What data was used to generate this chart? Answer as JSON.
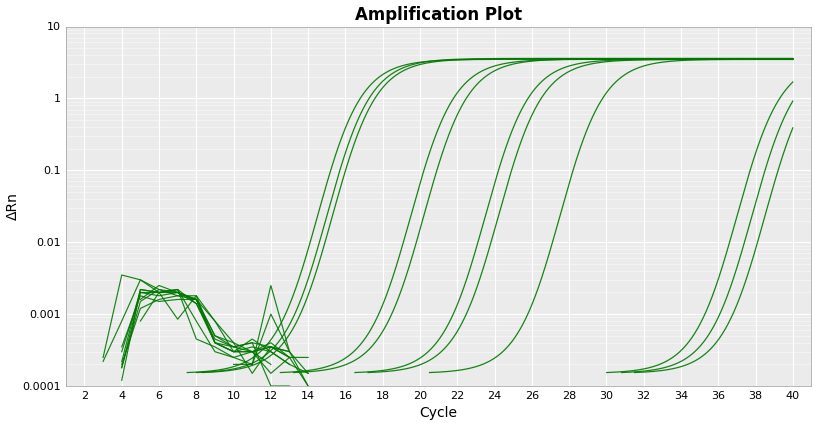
{
  "title": "Amplification Plot",
  "xlabel": "Cycle",
  "ylabel": "ΔRn",
  "xlim": [
    1,
    41
  ],
  "ylim_log": [
    0.0001,
    10
  ],
  "xticks": [
    2,
    4,
    6,
    8,
    10,
    12,
    14,
    16,
    18,
    20,
    22,
    24,
    26,
    28,
    30,
    32,
    34,
    36,
    38,
    40
  ],
  "yticks": [
    0.0001,
    0.001,
    0.01,
    0.1,
    1,
    10
  ],
  "line_color": "#007700",
  "background_color": "#ebebeb",
  "figsize": [
    8.17,
    4.26
  ],
  "dpi": 100,
  "sigmoid_curves": [
    {
      "Ct": 14.5,
      "plateau": 3.5,
      "slope": 0.85
    },
    {
      "Ct": 15.0,
      "plateau": 3.6,
      "slope": 0.85
    },
    {
      "Ct": 15.3,
      "plateau": 3.55,
      "slope": 0.85
    },
    {
      "Ct": 19.5,
      "plateau": 3.5,
      "slope": 0.85
    },
    {
      "Ct": 20.2,
      "plateau": 3.55,
      "slope": 0.85
    },
    {
      "Ct": 23.5,
      "plateau": 3.5,
      "slope": 0.85
    },
    {
      "Ct": 24.2,
      "plateau": 3.48,
      "slope": 0.85
    },
    {
      "Ct": 27.5,
      "plateau": 3.5,
      "slope": 0.85
    },
    {
      "Ct": 37.0,
      "plateau": 3.5,
      "slope": 0.85
    },
    {
      "Ct": 37.8,
      "plateau": 3.52,
      "slope": 0.85
    },
    {
      "Ct": 38.5,
      "plateau": 3.5,
      "slope": 0.85
    }
  ],
  "noise_traces": [
    [
      3,
      0.00025,
      4,
      0.0035,
      5,
      0.003,
      6,
      0.0022,
      7,
      0.0018,
      8,
      0.0016,
      9,
      0.0004,
      10,
      0.0003,
      11,
      0.0003,
      12,
      0.00015,
      13,
      0.00025,
      14,
      0.0001
    ],
    [
      3,
      0.00022,
      4,
      0.0008,
      5,
      0.003,
      6,
      0.002,
      7,
      0.00085,
      8,
      0.0018,
      9,
      0.0008,
      10,
      0.0003,
      11,
      0.00045,
      12,
      0.0003,
      13,
      0.0002,
      14,
      0.00015
    ],
    [
      4,
      0.00018,
      5,
      0.002,
      6,
      0.0018,
      7,
      0.002,
      8,
      0.0016,
      9,
      0.0005,
      10,
      0.00035,
      11,
      0.0004,
      12,
      0.0001,
      13,
      0.0001
    ],
    [
      4,
      0.0003,
      5,
      0.002,
      6,
      0.002,
      7,
      0.0022,
      8,
      0.0014,
      9,
      0.00045,
      10,
      0.00035,
      11,
      0.0004,
      12,
      0.00035,
      13,
      0.0003
    ],
    [
      4,
      0.00012,
      5,
      0.0022,
      6,
      0.002,
      7,
      0.0022,
      8,
      0.00045,
      9,
      0.00035,
      10,
      0.00025,
      11,
      0.0003,
      12,
      0.0002
    ],
    [
      4,
      0.00018,
      5,
      0.0015,
      6,
      0.0022,
      7,
      0.002,
      8,
      0.0016,
      9,
      0.0008,
      10,
      0.0004,
      11,
      0.0003,
      12,
      0.00035,
      13,
      0.00025
    ],
    [
      4,
      0.00022,
      5,
      0.0022,
      6,
      0.002,
      7,
      0.002,
      8,
      0.0014,
      9,
      0.0004,
      10,
      0.0003,
      11,
      0.0003,
      12,
      0.00035,
      13,
      0.0003
    ],
    [
      5,
      0.0016,
      6,
      0.0025,
      7,
      0.002,
      8,
      0.0016,
      9,
      0.0004,
      10,
      0.0003,
      11,
      0.00035,
      12,
      0.0003,
      13,
      0.0002
    ],
    [
      5,
      0.0008,
      6,
      0.002,
      7,
      0.0022,
      8,
      0.0008,
      9,
      0.0003,
      10,
      0.00025,
      11,
      0.0002
    ],
    [
      4,
      0.00035,
      5,
      0.0018,
      6,
      0.0015,
      7,
      0.0016,
      8,
      0.0016,
      9,
      0.0005,
      10,
      0.0004,
      11,
      0.00015,
      12,
      0.00035,
      13,
      0.00025,
      14,
      0.00025
    ],
    [
      4,
      0.0002,
      5,
      0.0012,
      6,
      0.0016,
      7,
      0.0018,
      8,
      0.0018,
      9,
      0.0004,
      10,
      0.00035,
      11,
      0.0003,
      12,
      0.0004,
      13,
      0.00025
    ],
    [
      10,
      0.0002,
      11,
      0.0002,
      12,
      0.0025,
      13,
      0.0003,
      14,
      0.0001
    ],
    [
      11,
      0.0002,
      12,
      0.001,
      13,
      0.0003,
      14,
      0.00015
    ]
  ]
}
